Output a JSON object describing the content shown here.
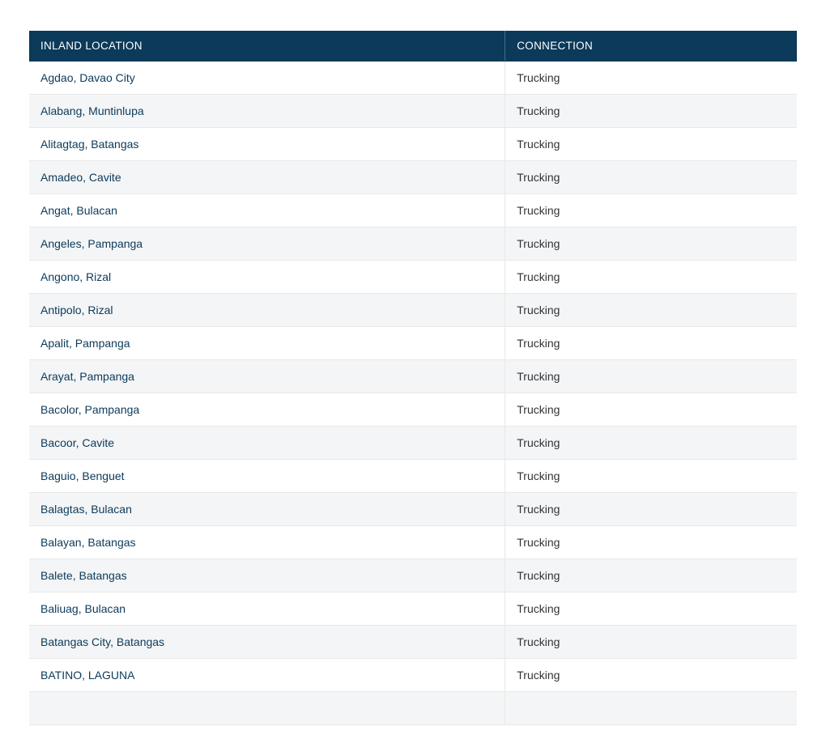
{
  "table": {
    "columns": [
      {
        "label": "INLAND LOCATION",
        "width_pct": 62,
        "interactable": false
      },
      {
        "label": "CONNECTION",
        "width_pct": 38,
        "interactable": false
      }
    ],
    "header_style": {
      "bg": "#0b3a5a",
      "fg": "#ffffff",
      "font_weight": 400,
      "font_size_pt": 10
    },
    "row_stripe_colors": {
      "odd": "#ffffff",
      "even": "#f4f5f6"
    },
    "border_color": "#e8e8e8",
    "link_color": "#0b3a5a",
    "text_color": "#333333",
    "rows": [
      {
        "location": "Agdao, Davao City",
        "connection": "Trucking"
      },
      {
        "location": "Alabang, Muntinlupa",
        "connection": "Trucking"
      },
      {
        "location": "Alitagtag, Batangas",
        "connection": "Trucking"
      },
      {
        "location": "Amadeo, Cavite",
        "connection": "Trucking"
      },
      {
        "location": "Angat, Bulacan",
        "connection": "Trucking"
      },
      {
        "location": "Angeles, Pampanga",
        "connection": "Trucking"
      },
      {
        "location": "Angono, Rizal",
        "connection": "Trucking"
      },
      {
        "location": "Antipolo, Rizal",
        "connection": "Trucking"
      },
      {
        "location": "Apalit, Pampanga",
        "connection": "Trucking"
      },
      {
        "location": "Arayat, Pampanga",
        "connection": "Trucking"
      },
      {
        "location": "Bacolor, Pampanga",
        "connection": "Trucking"
      },
      {
        "location": "Bacoor, Cavite",
        "connection": "Trucking"
      },
      {
        "location": "Baguio, Benguet",
        "connection": "Trucking"
      },
      {
        "location": "Balagtas, Bulacan",
        "connection": "Trucking"
      },
      {
        "location": "Balayan, Batangas",
        "connection": "Trucking"
      },
      {
        "location": "Balete, Batangas",
        "connection": "Trucking"
      },
      {
        "location": "Baliuag, Bulacan",
        "connection": "Trucking"
      },
      {
        "location": "Batangas City, Batangas",
        "connection": "Trucking"
      },
      {
        "location": "BATINO, LAGUNA",
        "connection": "Trucking"
      },
      {
        "location": "",
        "connection": ""
      }
    ]
  }
}
